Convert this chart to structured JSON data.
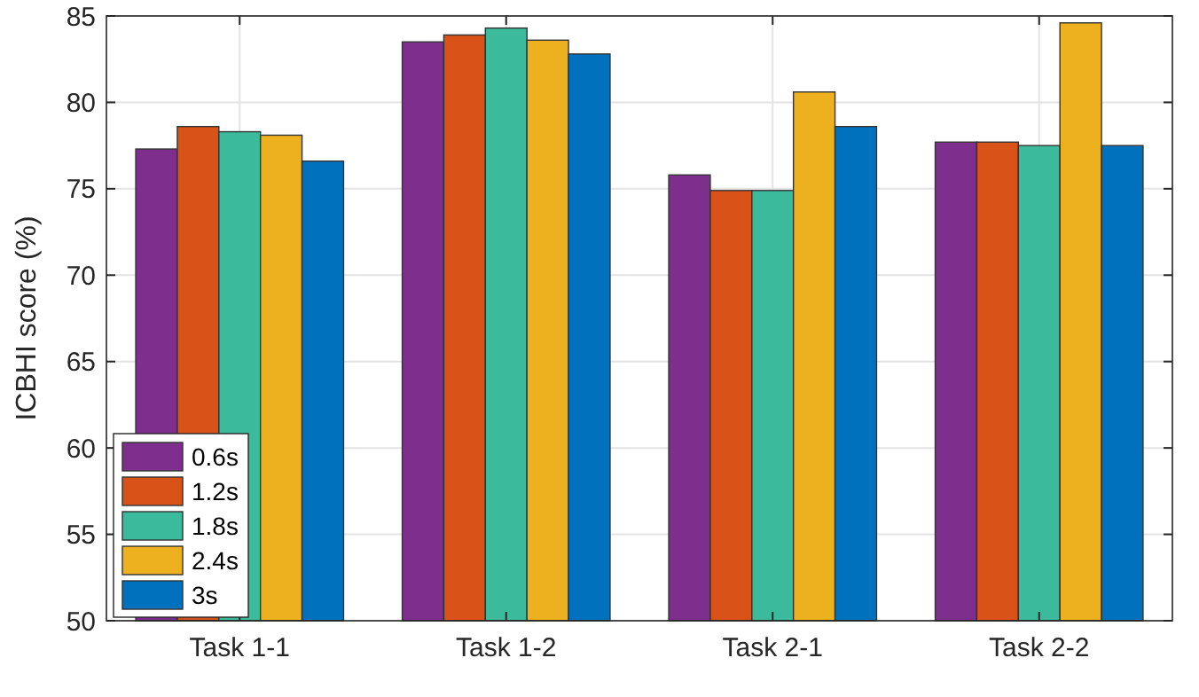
{
  "chart_data": {
    "type": "bar",
    "ylabel": "ICBHI score (%)",
    "categories": [
      "Task 1-1",
      "Task 1-2",
      "Task 2-1",
      "Task 2-2"
    ],
    "series": [
      {
        "name": "0.6s",
        "color": "#7e2f8e",
        "values": [
          77.3,
          83.5,
          75.8,
          77.7
        ]
      },
      {
        "name": "1.2s",
        "color": "#d95319",
        "values": [
          78.6,
          83.9,
          74.9,
          77.7
        ]
      },
      {
        "name": "1.8s",
        "color": "#3bba9c",
        "values": [
          78.3,
          84.3,
          74.9,
          77.5
        ]
      },
      {
        "name": "2.4s",
        "color": "#edb120",
        "values": [
          78.1,
          83.6,
          80.6,
          84.6
        ]
      },
      {
        "name": "3s",
        "color": "#0072bd",
        "values": [
          76.6,
          82.8,
          78.6,
          77.5
        ]
      }
    ],
    "ylim": [
      50,
      85
    ],
    "yticks": [
      50,
      55,
      60,
      65,
      70,
      75,
      80,
      85
    ],
    "grid": true,
    "legend": "bottom left"
  }
}
